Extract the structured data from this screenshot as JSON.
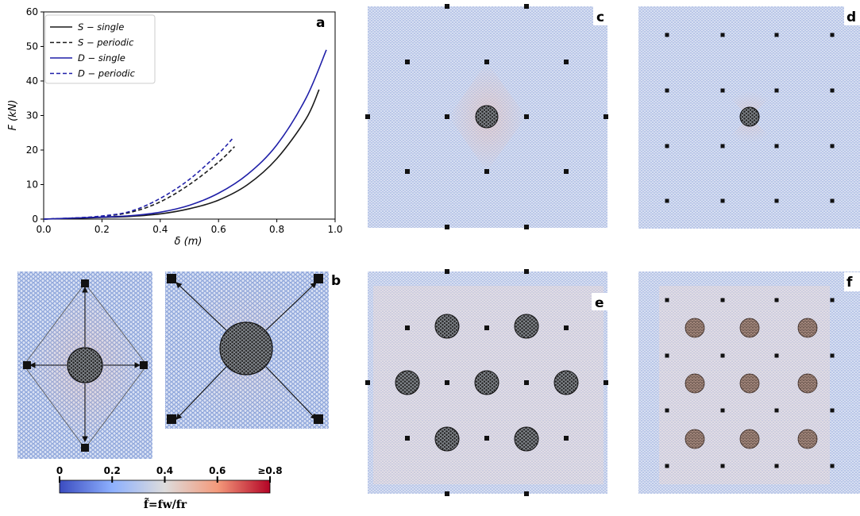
{
  "chart_data": {
    "type": "line",
    "xlabel": "δ (m)",
    "ylabel": "F (kN)",
    "xlim": [
      0.0,
      1.0
    ],
    "ylim": [
      0,
      60
    ],
    "xticks": [
      "0.0",
      "0.2",
      "0.4",
      "0.6",
      "0.8",
      "1.0"
    ],
    "yticks": [
      "0",
      "10",
      "20",
      "30",
      "40",
      "50",
      "60"
    ],
    "legend_position": "top-left",
    "grid": false,
    "series": [
      {
        "name": "S − single",
        "color": "#1a1a1a",
        "dash": "solid",
        "x": [
          0.0,
          0.1,
          0.2,
          0.3,
          0.4,
          0.5,
          0.6,
          0.7,
          0.8,
          0.9,
          0.945
        ],
        "y": [
          0,
          0.2,
          0.5,
          0.8,
          1.5,
          3.0,
          5.5,
          10.0,
          17.5,
          29.0,
          37.5
        ]
      },
      {
        "name": "S − periodic",
        "color": "#1a1a1a",
        "dash": "dashed",
        "x": [
          0.0,
          0.1,
          0.2,
          0.3,
          0.4,
          0.5,
          0.6,
          0.655
        ],
        "y": [
          0,
          0.3,
          0.8,
          2.0,
          5.0,
          10.0,
          16.5,
          21.0
        ]
      },
      {
        "name": "D − single",
        "color": "#1f1fa8",
        "dash": "solid",
        "x": [
          0.0,
          0.1,
          0.2,
          0.3,
          0.4,
          0.5,
          0.6,
          0.7,
          0.8,
          0.9,
          0.97
        ],
        "y": [
          0,
          0.3,
          0.6,
          1.0,
          2.0,
          4.0,
          7.5,
          13.0,
          21.5,
          35.0,
          49.0
        ]
      },
      {
        "name": "D − periodic",
        "color": "#1f1fa8",
        "dash": "dashed",
        "x": [
          0.0,
          0.1,
          0.2,
          0.3,
          0.4,
          0.5,
          0.6,
          0.65
        ],
        "y": [
          0,
          0.3,
          0.9,
          2.3,
          6.0,
          11.5,
          19.0,
          23.5
        ]
      }
    ]
  },
  "panels": {
    "a": "a",
    "b": "b",
    "c": "c",
    "d": "d",
    "e": "e",
    "f": "f"
  },
  "colorbar": {
    "tick_labels": [
      "0",
      "0.2",
      "0.4",
      "0.6",
      "≥0.8"
    ],
    "title": "f̃=fw/fr",
    "colors": [
      "#3b4cc0",
      "#dddcdc",
      "#b40426"
    ]
  }
}
